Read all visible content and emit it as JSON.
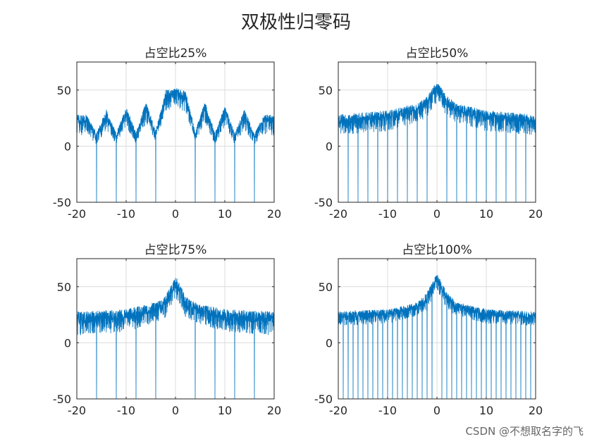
{
  "figure": {
    "suptitle": "双极性归零码",
    "watermark": "CSDN @不想取名字的飞"
  },
  "style": {
    "line_color": "#0072BD",
    "grid_color": "#dcdcdc",
    "axis_color": "#262626"
  },
  "chart_data": [
    {
      "type": "line",
      "title": "占空比25%",
      "duty_percent": 25,
      "xlim": [
        -20,
        20
      ],
      "ylim": [
        -50,
        75
      ],
      "xticks": [
        -20,
        -10,
        0,
        10,
        20
      ],
      "yticks": [
        -50,
        0,
        50
      ],
      "grid": true,
      "series": [
        {
          "envelope_upper": [
            [
              -20,
              28
            ],
            [
              -18,
              28
            ],
            [
              -16,
              12
            ],
            [
              -14,
              33
            ],
            [
              -12,
              12
            ],
            [
              -10,
              36
            ],
            [
              -8,
              12
            ],
            [
              -6,
              40
            ],
            [
              -4,
              14
            ],
            [
              -2,
              50
            ],
            [
              0,
              52
            ],
            [
              2,
              50
            ],
            [
              4,
              14
            ],
            [
              6,
              40
            ],
            [
              8,
              12
            ],
            [
              10,
              36
            ],
            [
              12,
              12
            ],
            [
              14,
              33
            ],
            [
              16,
              12
            ],
            [
              18,
              28
            ],
            [
              20,
              28
            ]
          ],
          "envelope_lower": [
            [
              -20,
              -2
            ],
            [
              -18,
              2
            ],
            [
              -16,
              -5
            ],
            [
              -14,
              5
            ],
            [
              -12,
              -4
            ],
            [
              -10,
              6
            ],
            [
              -8,
              -4
            ],
            [
              -6,
              10
            ],
            [
              -4,
              -2
            ],
            [
              -2,
              20
            ],
            [
              0,
              25
            ],
            [
              2,
              20
            ],
            [
              4,
              -2
            ],
            [
              6,
              10
            ],
            [
              8,
              -4
            ],
            [
              10,
              6
            ],
            [
              12,
              -4
            ],
            [
              14,
              5
            ],
            [
              16,
              -5
            ],
            [
              18,
              2
            ],
            [
              20,
              -2
            ]
          ],
          "nulls": [
            -16,
            -12,
            -8,
            -4,
            4,
            8,
            12,
            16
          ]
        }
      ]
    },
    {
      "type": "line",
      "title": "占空比50%",
      "duty_percent": 50,
      "xlim": [
        -20,
        20
      ],
      "ylim": [
        -50,
        75
      ],
      "xticks": [
        -20,
        -10,
        0,
        10,
        20
      ],
      "yticks": [
        -50,
        0,
        50
      ],
      "grid": true,
      "series": [
        {
          "envelope_upper": [
            [
              -20,
              28
            ],
            [
              -10,
              32
            ],
            [
              -4,
              38
            ],
            [
              -2,
              45
            ],
            [
              0,
              58
            ],
            [
              2,
              45
            ],
            [
              4,
              38
            ],
            [
              10,
              32
            ],
            [
              20,
              28
            ]
          ],
          "envelope_lower": [
            [
              -20,
              0
            ],
            [
              -10,
              3
            ],
            [
              -2,
              15
            ],
            [
              0,
              28
            ],
            [
              2,
              15
            ],
            [
              10,
              3
            ],
            [
              20,
              0
            ]
          ],
          "nulls": [
            -18,
            -16,
            -14,
            -12,
            -10,
            -8,
            -6,
            -4,
            -2,
            2,
            4,
            6,
            8,
            10,
            12,
            14,
            16,
            18
          ]
        }
      ]
    },
    {
      "type": "line",
      "title": "占空比75%",
      "duty_percent": 75,
      "xlim": [
        -20,
        20
      ],
      "ylim": [
        -50,
        75
      ],
      "xticks": [
        -20,
        -10,
        0,
        10,
        20
      ],
      "yticks": [
        -50,
        0,
        50
      ],
      "grid": true,
      "series": [
        {
          "envelope_upper": [
            [
              -20,
              28
            ],
            [
              -10,
              30
            ],
            [
              -4,
              36
            ],
            [
              -2,
              42
            ],
            [
              0,
              60
            ],
            [
              2,
              42
            ],
            [
              4,
              36
            ],
            [
              10,
              30
            ],
            [
              20,
              28
            ]
          ],
          "envelope_lower": [
            [
              -20,
              -5
            ],
            [
              -10,
              -2
            ],
            [
              -2,
              12
            ],
            [
              0,
              30
            ],
            [
              2,
              12
            ],
            [
              10,
              -2
            ],
            [
              20,
              -5
            ]
          ],
          "nulls": [
            -16,
            -12,
            -8,
            -4,
            4,
            8,
            12,
            16
          ]
        }
      ]
    },
    {
      "type": "line",
      "title": "占空比100%",
      "duty_percent": 100,
      "xlim": [
        -20,
        20
      ],
      "ylim": [
        -50,
        75
      ],
      "xticks": [
        -20,
        -10,
        0,
        10,
        20
      ],
      "yticks": [
        -50,
        0,
        50
      ],
      "grid": true,
      "series": [
        {
          "envelope_upper": [
            [
              -20,
              28
            ],
            [
              -10,
              30
            ],
            [
              -4,
              36
            ],
            [
              -2,
              45
            ],
            [
              0,
              62
            ],
            [
              2,
              45
            ],
            [
              4,
              36
            ],
            [
              10,
              30
            ],
            [
              20,
              28
            ]
          ],
          "envelope_lower": [
            [
              -20,
              8
            ],
            [
              -10,
              10
            ],
            [
              -2,
              20
            ],
            [
              0,
              40
            ],
            [
              2,
              20
            ],
            [
              10,
              10
            ],
            [
              20,
              8
            ]
          ],
          "nulls": [
            -19,
            -18,
            -17,
            -16,
            -15,
            -14,
            -13,
            -12,
            -11,
            -10,
            -9,
            -8,
            -7,
            -6,
            -5,
            -4,
            -3,
            -2,
            -1,
            1,
            2,
            3,
            4,
            5,
            6,
            7,
            8,
            9,
            10,
            11,
            12,
            13,
            14,
            15,
            16,
            17,
            18,
            19
          ]
        }
      ]
    }
  ]
}
